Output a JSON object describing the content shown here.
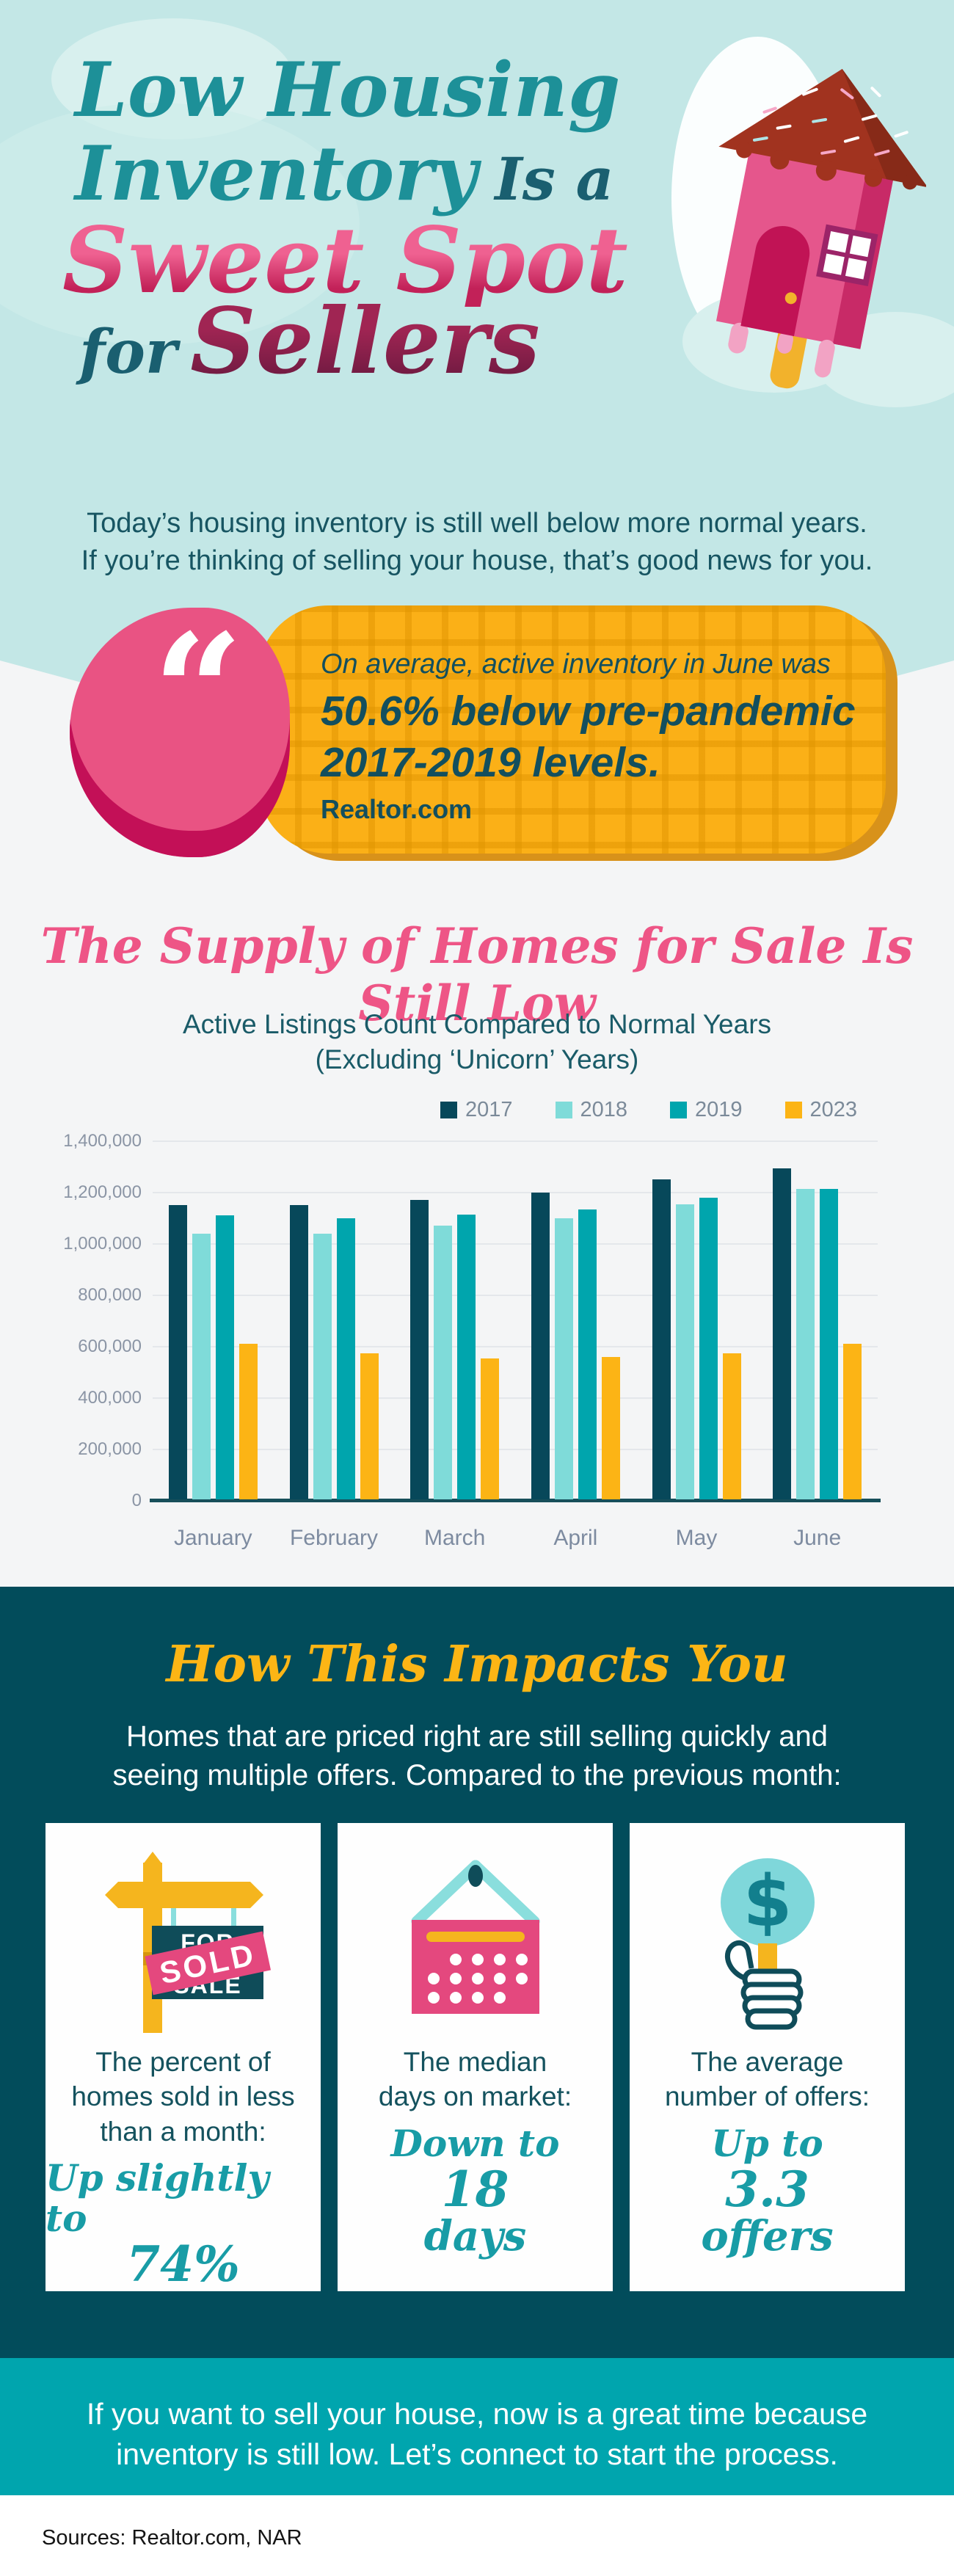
{
  "header": {
    "title": {
      "line1": "Low Housing",
      "line2_script": "Inventory",
      "line2_plain": "Is a",
      "line3": "Sweet Spot",
      "line4_small": "for",
      "line4_big": "Sellers"
    },
    "subtitle_line1": "Today’s housing inventory is still well below more normal years.",
    "subtitle_line2": "If you’re thinking of selling your house, that’s good news for you."
  },
  "quote": {
    "mark": "“",
    "line1": "On average, active inventory in June was",
    "line2": "50.6% below pre-pandemic",
    "line3": "2017-2019 levels.",
    "attribution": "Realtor.com"
  },
  "chart_section": {
    "title": "The Supply of Homes for Sale Is Still Low",
    "subtitle_line1": "Active Listings Count Compared to Normal Years",
    "subtitle_line2": "(Excluding ‘Unicorn’ Years)"
  },
  "chart_data": {
    "type": "bar",
    "title": "Active Listings Count Compared to Normal Years (Excluding ‘Unicorn’ Years)",
    "xlabel": "",
    "ylabel": "",
    "categories": [
      "January",
      "February",
      "March",
      "April",
      "May",
      "June"
    ],
    "series": [
      {
        "name": "2017",
        "color": "#07485a",
        "values": [
          1145000,
          1145000,
          1165000,
          1195000,
          1245000,
          1290000
        ]
      },
      {
        "name": "2018",
        "color": "#7fdbd9",
        "values": [
          1035000,
          1035000,
          1065000,
          1095000,
          1150000,
          1210000
        ]
      },
      {
        "name": "2019",
        "color": "#00a5ad",
        "values": [
          1105000,
          1095000,
          1110000,
          1130000,
          1175000,
          1210000
        ]
      },
      {
        "name": "2023",
        "color": "#fcb415",
        "values": [
          605000,
          570000,
          550000,
          555000,
          570000,
          605000
        ]
      }
    ],
    "ylim": [
      0,
      1400000
    ],
    "ytick_step": 200000,
    "ytick_labels": [
      "1,400,000",
      "1,200,000",
      "1,000,000",
      "800,000",
      "600,000",
      "400,000",
      "200,000",
      "0"
    ],
    "grid": true,
    "legend_position": "top"
  },
  "impact": {
    "heading": "How This Impacts You",
    "intro_line1": "Homes that are priced right are still selling quickly and",
    "intro_line2": "seeing multiple offers. Compared to the previous month:",
    "cards": [
      {
        "icon": "sold-sign-icon",
        "sign_top": "FOR",
        "sign_bottom": "SALE",
        "banner": "SOLD",
        "line1": "The percent of",
        "line2": "homes sold in less",
        "line3": "than a month:",
        "script_small": "Up slightly to",
        "script_big": "74%",
        "script_tail": ""
      },
      {
        "icon": "calendar-icon",
        "line1": "The median",
        "line2": "days on market:",
        "line3": "",
        "script_small": "Down to",
        "script_big": "18",
        "script_tail": "days"
      },
      {
        "icon": "offers-paddle-icon",
        "icon_glyph": "$",
        "line1": "The average",
        "line2": "number of offers:",
        "line3": "",
        "script_small": "Up to",
        "script_big": "3.3",
        "script_tail": "offers"
      }
    ]
  },
  "footer": {
    "cta_line1": "If you want to sell your house, now is a great time because",
    "cta_line2": "inventory is still low. Let’s connect to start the process.",
    "sources": "Sources: Realtor.com, NAR"
  },
  "palette": {
    "header_bg": "#c3e7e6",
    "section_bg": "#f4f5f6",
    "dark_teal": "#024c5b",
    "teal_band": "#00a5ae",
    "title_teal": "#1d9098",
    "accent_pink": "#ee5586",
    "accent_yellow": "#fbb017",
    "script_teal": "#189ca6",
    "body_teal": "#14525e"
  }
}
